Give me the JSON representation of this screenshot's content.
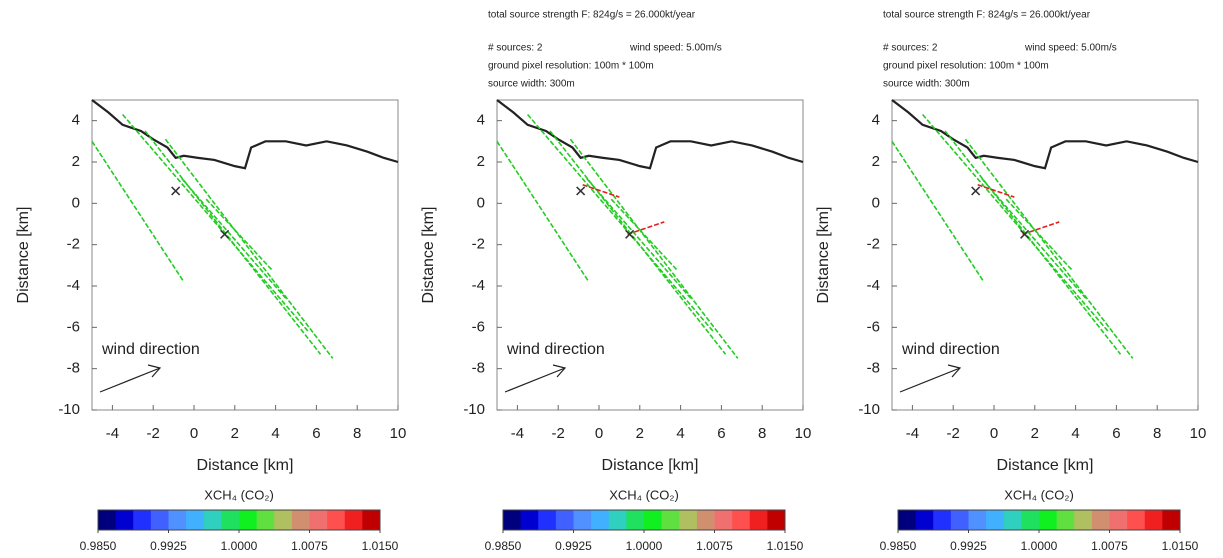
{
  "chart_data": [
    {
      "type": "line",
      "xlabel": "Distance [km]",
      "ylabel": "Distance [km]",
      "xlim": [
        -5,
        10
      ],
      "ylim": [
        -10,
        5
      ],
      "xticks": [
        -4,
        -2,
        0,
        2,
        4,
        6,
        8,
        10
      ],
      "yticks": [
        -10,
        -8,
        -6,
        -4,
        -2,
        0,
        2,
        4
      ],
      "annotation": "wind direction",
      "series": [
        {
          "color": "#222222",
          "x": [
            -5,
            -4.2,
            -3.5,
            -2.6,
            -2,
            -1.3,
            -0.9,
            -0.5,
            0.2,
            1,
            2,
            2.5,
            2.8,
            3.5,
            4.5,
            5.5,
            6.5,
            7.5,
            8.5,
            9.3,
            10
          ],
          "y": [
            5,
            4.4,
            3.8,
            3.5,
            3.1,
            2.7,
            2.2,
            2.3,
            2.2,
            2.1,
            1.8,
            1.7,
            2.7,
            3,
            3,
            2.8,
            3,
            2.8,
            2.5,
            2.2,
            2
          ]
        },
        {
          "color": "#22cc22",
          "x": [
            -5,
            -0.5
          ],
          "y": [
            3,
            -3.8
          ]
        },
        {
          "color": "#22cc22",
          "x": [
            -3.5,
            5.6
          ],
          "y": [
            4.3,
            -6.2
          ]
        },
        {
          "color": "#22cc22",
          "x": [
            -2.4,
            6.2
          ],
          "y": [
            3.5,
            -7.3
          ]
        },
        {
          "color": "#22cc22",
          "x": [
            -1.4,
            6.8
          ],
          "y": [
            3.1,
            -7.5
          ]
        },
        {
          "color": "#22cc22",
          "x": [
            -0.6,
            4.5
          ],
          "y": [
            1.2,
            -4.6
          ]
        },
        {
          "color": "#22cc22",
          "x": [
            0.6,
            3.8
          ],
          "y": [
            0.2,
            -3.2
          ]
        },
        {
          "color": "#333333",
          "marker": "x",
          "x": [
            -0.9,
            1.5
          ],
          "y": [
            0.6,
            -1.5
          ]
        }
      ],
      "colorbar": {
        "label": "XCH₄ (CO₂)",
        "lim": [
          0.985,
          1.015
        ],
        "colors": [
          "#00007f",
          "#0000d0",
          "#2030ff",
          "#4060ff",
          "#5090ff",
          "#40b0ff",
          "#30d0c0",
          "#20e060",
          "#10f020",
          "#60e040",
          "#b0c060",
          "#d09070",
          "#f07070",
          "#ff5050",
          "#f02020",
          "#c00000"
        ],
        "ticks": [
          {
            "value": 0.985,
            "label": "0.9850"
          },
          {
            "value": 0.9925,
            "label": "0.9925"
          },
          {
            "value": 1,
            "label": "1.0000"
          },
          {
            "value": 1.0075,
            "label": "1.0075"
          },
          {
            "value": 1.015,
            "label": "1.0150"
          }
        ]
      }
    },
    {
      "type": "line",
      "xlabel": "Distance [km]",
      "ylabel": "Distance [km]",
      "xlim": [
        -5,
        10
      ],
      "ylim": [
        -10,
        5
      ],
      "xticks": [
        -4,
        -2,
        0,
        2,
        4,
        6,
        8,
        10
      ],
      "yticks": [
        -10,
        -8,
        -6,
        -4,
        -2,
        0,
        2,
        4
      ],
      "annotation": "wind direction",
      "header": [
        [
          "total source strength F:   824g/s = 26.000kt/year"
        ],
        [
          "# sources:  2",
          "wind speed: 5.00m/s"
        ],
        [
          "ground pixel resolution:   100m *   100m"
        ],
        [
          "source width:   300m"
        ]
      ],
      "series": [
        {
          "color": "#222222",
          "x": [
            -5,
            -4.2,
            -3.5,
            -2.6,
            -2,
            -1.3,
            -0.9,
            -0.5,
            0.2,
            1,
            2,
            2.5,
            2.8,
            3.5,
            4.5,
            5.5,
            6.5,
            7.5,
            8.5,
            9.3,
            10
          ],
          "y": [
            5,
            4.4,
            3.8,
            3.5,
            3.1,
            2.7,
            2.2,
            2.3,
            2.2,
            2.1,
            1.8,
            1.7,
            2.7,
            3,
            3,
            2.8,
            3,
            2.8,
            2.5,
            2.2,
            2
          ]
        },
        {
          "color": "#22cc22",
          "x": [
            -5,
            -0.5
          ],
          "y": [
            3,
            -3.8
          ]
        },
        {
          "color": "#22cc22",
          "x": [
            -3.5,
            5.6
          ],
          "y": [
            4.3,
            -6.2
          ]
        },
        {
          "color": "#22cc22",
          "x": [
            -2.4,
            6.2
          ],
          "y": [
            3.5,
            -7.3
          ]
        },
        {
          "color": "#22cc22",
          "x": [
            -1.4,
            6.8
          ],
          "y": [
            3.1,
            -7.5
          ]
        },
        {
          "color": "#22cc22",
          "x": [
            -0.6,
            4.5
          ],
          "y": [
            1.2,
            -4.6
          ]
        },
        {
          "color": "#22cc22",
          "x": [
            0.6,
            3.8
          ],
          "y": [
            0.2,
            -3.2
          ]
        },
        {
          "color": "#e02020",
          "x": [
            -0.8,
            1
          ],
          "y": [
            0.9,
            0.3
          ]
        },
        {
          "color": "#e02020",
          "x": [
            1.4,
            3.2
          ],
          "y": [
            -1.5,
            -0.9
          ]
        },
        {
          "color": "#333333",
          "marker": "x",
          "x": [
            -0.9,
            1.5
          ],
          "y": [
            0.6,
            -1.5
          ]
        }
      ],
      "colorbar": {
        "label": "XCH₄ (CO₂)",
        "lim": [
          0.985,
          1.015
        ],
        "colors": [
          "#00007f",
          "#0000d0",
          "#2030ff",
          "#4060ff",
          "#5090ff",
          "#40b0ff",
          "#30d0c0",
          "#20e060",
          "#10f020",
          "#60e040",
          "#b0c060",
          "#d09070",
          "#f07070",
          "#ff5050",
          "#f02020",
          "#c00000"
        ],
        "ticks": [
          {
            "value": 0.985,
            "label": "0.9850"
          },
          {
            "value": 0.9925,
            "label": "0.9925"
          },
          {
            "value": 1,
            "label": "1.0000"
          },
          {
            "value": 1.0075,
            "label": "1.0075"
          },
          {
            "value": 1.015,
            "label": "1.0150"
          }
        ]
      }
    },
    {
      "type": "line",
      "xlabel": "Distance [km]",
      "ylabel": "Distance [km]",
      "xlim": [
        -5,
        10
      ],
      "ylim": [
        -10,
        5
      ],
      "xticks": [
        -4,
        -2,
        0,
        2,
        4,
        6,
        8,
        10
      ],
      "yticks": [
        -10,
        -8,
        -6,
        -4,
        -2,
        0,
        2,
        4
      ],
      "annotation": "wind direction",
      "header": [
        [
          "total source strength F:   824g/s = 26.000kt/year"
        ],
        [
          "# sources:  2",
          "wind speed: 5.00m/s"
        ],
        [
          "ground pixel resolution:   100m *   100m"
        ],
        [
          "source width:   300m"
        ]
      ],
      "series": [
        {
          "color": "#222222",
          "x": [
            -5,
            -4.2,
            -3.5,
            -2.6,
            -2,
            -1.3,
            -0.9,
            -0.5,
            0.2,
            1,
            2,
            2.5,
            2.8,
            3.5,
            4.5,
            5.5,
            6.5,
            7.5,
            8.5,
            9.3,
            10
          ],
          "y": [
            5,
            4.4,
            3.8,
            3.5,
            3.1,
            2.7,
            2.2,
            2.3,
            2.2,
            2.1,
            1.8,
            1.7,
            2.7,
            3,
            3,
            2.8,
            3,
            2.8,
            2.5,
            2.2,
            2
          ]
        },
        {
          "color": "#22cc22",
          "x": [
            -5,
            -0.5
          ],
          "y": [
            3,
            -3.8
          ]
        },
        {
          "color": "#22cc22",
          "x": [
            -3.5,
            5.6
          ],
          "y": [
            4.3,
            -6.2
          ]
        },
        {
          "color": "#22cc22",
          "x": [
            -2.4,
            6.2
          ],
          "y": [
            3.5,
            -7.3
          ]
        },
        {
          "color": "#22cc22",
          "x": [
            -1.4,
            6.8
          ],
          "y": [
            3.1,
            -7.5
          ]
        },
        {
          "color": "#22cc22",
          "x": [
            -0.6,
            4.5
          ],
          "y": [
            1.2,
            -4.6
          ]
        },
        {
          "color": "#22cc22",
          "x": [
            0.6,
            3.8
          ],
          "y": [
            0.2,
            -3.2
          ]
        },
        {
          "color": "#e02020",
          "x": [
            -0.8,
            1
          ],
          "y": [
            0.9,
            0.3
          ]
        },
        {
          "color": "#e02020",
          "x": [
            1.4,
            3.2
          ],
          "y": [
            -1.5,
            -0.9
          ]
        },
        {
          "color": "#333333",
          "marker": "x",
          "x": [
            -0.9,
            1.5
          ],
          "y": [
            0.6,
            -1.5
          ]
        }
      ],
      "colorbar": {
        "label": "XCH₄ (CO₂)",
        "lim": [
          0.985,
          1.015
        ],
        "colors": [
          "#00007f",
          "#0000d0",
          "#2030ff",
          "#4060ff",
          "#5090ff",
          "#40b0ff",
          "#30d0c0",
          "#20e060",
          "#10f020",
          "#60e040",
          "#b0c060",
          "#d09070",
          "#f07070",
          "#ff5050",
          "#f02020",
          "#c00000"
        ],
        "ticks": [
          {
            "value": 0.985,
            "label": "0.9850"
          },
          {
            "value": 0.9925,
            "label": "0.9925"
          },
          {
            "value": 1,
            "label": "1.0000"
          },
          {
            "value": 1.0075,
            "label": "1.0075"
          },
          {
            "value": 1.015,
            "label": "1.0150"
          }
        ]
      }
    }
  ]
}
